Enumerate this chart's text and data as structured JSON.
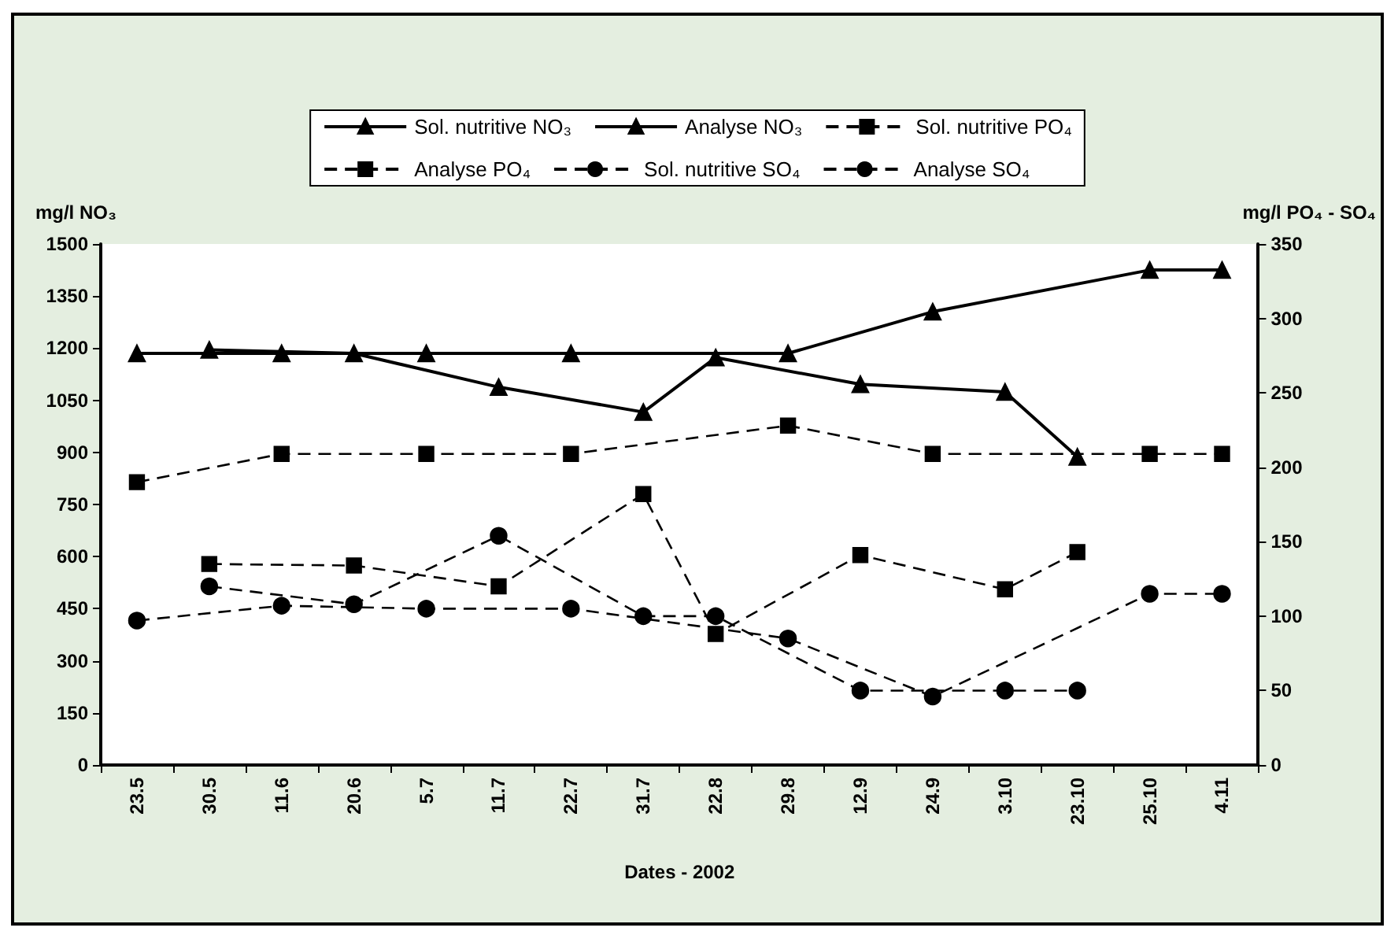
{
  "chart_data": {
    "type": "line",
    "xlabel": "Dates - 2002",
    "ylabel": "mg/l NO₃",
    "y2label": "mg/l PO₄ - SO₄",
    "categories": [
      "23.5",
      "30.5",
      "11.6",
      "20.6",
      "5.7",
      "11.7",
      "22.7",
      "31.7",
      "22.8",
      "29.8",
      "12.9",
      "24.9",
      "3.10",
      "23.10",
      "25.10",
      "4.11"
    ],
    "series": [
      {
        "name": "Sol. nutritive NO₃",
        "color": "#000000",
        "marker": "triangle",
        "line_style": "solid",
        "values": [
          1185,
          null,
          1185,
          null,
          1185,
          null,
          1185,
          null,
          null,
          1185,
          null,
          1305,
          null,
          null,
          1425,
          1425
        ]
      },
      {
        "name": "Analyse NO₃",
        "color": "#000000",
        "marker": "triangle",
        "line_style": "solid",
        "values": [
          null,
          1195,
          null,
          1185,
          null,
          1088,
          null,
          1016,
          1173,
          null,
          1096,
          null,
          1074,
          887,
          null,
          null
        ]
      },
      {
        "name": "Sol. nutritive PO₄",
        "color": "#000000",
        "marker": "square",
        "line_style": "dashed",
        "axis": "y2",
        "values": [
          190,
          null,
          209,
          null,
          209,
          null,
          209,
          null,
          null,
          228,
          null,
          209,
          null,
          null,
          209,
          209
        ]
      },
      {
        "name": "Analyse PO₄",
        "color": "#000000",
        "marker": "square",
        "line_style": "dashed",
        "axis": "y2",
        "values": [
          null,
          135,
          null,
          134,
          null,
          120,
          null,
          182,
          88,
          null,
          141,
          null,
          118,
          143,
          null,
          null
        ]
      },
      {
        "name": "Sol. nutritive SO₄",
        "color": "#000000",
        "marker": "circle",
        "line_style": "dashed",
        "axis": "y2",
        "values": [
          97,
          null,
          107,
          null,
          105,
          null,
          105,
          null,
          null,
          85,
          null,
          46,
          null,
          null,
          115,
          115
        ]
      },
      {
        "name": "Analyse SO₄",
        "color": "#000000",
        "marker": "circle",
        "line_style": "dashed",
        "axis": "y2",
        "values": [
          null,
          120,
          null,
          108,
          null,
          154,
          null,
          100,
          100,
          null,
          50,
          null,
          50,
          50,
          null,
          null
        ]
      }
    ],
    "ylim": [
      0,
      1500
    ],
    "yticks": [
      0,
      150,
      300,
      450,
      600,
      750,
      900,
      1050,
      1200,
      1350,
      1500
    ],
    "y2lim": [
      0,
      350
    ],
    "y2ticks": [
      0,
      50,
      100,
      150,
      200,
      250,
      300,
      350
    ],
    "grid": false,
    "legend": "top"
  }
}
